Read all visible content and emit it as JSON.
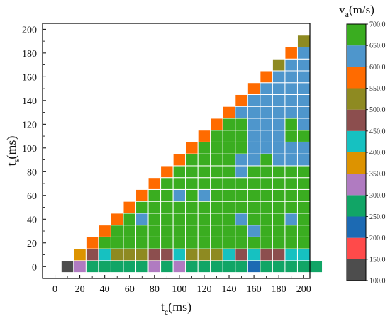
{
  "chart_data": {
    "type": "heatmap",
    "title": "",
    "xlabel_main": "t",
    "xlabel_sub": "c",
    "xlabel_unit": "(ms)",
    "ylabel_main": "t",
    "ylabel_sub": "s",
    "ylabel_unit": "(ms)",
    "xlim": [
      -10,
      205
    ],
    "ylim": [
      -10,
      205
    ],
    "x_ticks": [
      "0",
      "20",
      "40",
      "60",
      "80",
      "100",
      "120",
      "140",
      "160",
      "180",
      "200"
    ],
    "y_ticks": [
      "0",
      "20",
      "40",
      "60",
      "80",
      "100",
      "120",
      "140",
      "160",
      "180",
      "200"
    ],
    "x_tick_values": [
      0,
      20,
      40,
      60,
      80,
      100,
      120,
      140,
      160,
      180,
      200
    ],
    "y_tick_values": [
      0,
      20,
      40,
      60,
      80,
      100,
      120,
      140,
      160,
      180,
      200
    ],
    "cell_step": 10,
    "colorbar": {
      "title_main": "v",
      "title_sub": "a",
      "title_unit": "(m/s)",
      "tick_labels": [
        "100.0",
        "150.0",
        "200.0",
        "250.0",
        "300.0",
        "350.0",
        "400.0",
        "450.0",
        "500.0",
        "550.0",
        "600.0",
        "650.0",
        "700.0"
      ],
      "range": [
        100,
        700
      ],
      "bins": [
        {
          "range": [
            100,
            150
          ],
          "color": "#4d4d4d"
        },
        {
          "range": [
            150,
            200
          ],
          "color": "#ff4a4a"
        },
        {
          "range": [
            200,
            250
          ],
          "color": "#1c6ab3"
        },
        {
          "range": [
            250,
            300
          ],
          "color": "#11a566"
        },
        {
          "range": [
            300,
            350
          ],
          "color": "#b07bc1"
        },
        {
          "range": [
            350,
            400
          ],
          "color": "#dd9300"
        },
        {
          "range": [
            400,
            450
          ],
          "color": "#16c1c1"
        },
        {
          "range": [
            450,
            500
          ],
          "color": "#8c4e4e"
        },
        {
          "range": [
            500,
            550
          ],
          "color": "#8e8a21"
        },
        {
          "range": [
            550,
            600
          ],
          "color": "#ff6b00"
        },
        {
          "range": [
            600,
            650
          ],
          "color": "#4e96cc"
        },
        {
          "range": [
            650,
            700
          ],
          "color": "#3aad20"
        }
      ]
    },
    "rows": [
      {
        "ts": 0,
        "start_tc": 10,
        "values": [
          125,
          325,
          275,
          275,
          275,
          275,
          275,
          325,
          275,
          325,
          275,
          275,
          275,
          275,
          275,
          225,
          275,
          275,
          275,
          275,
          275
        ]
      },
      {
        "ts": 10,
        "start_tc": 20,
        "values": [
          375,
          475,
          425,
          525,
          525,
          525,
          475,
          475,
          425,
          525,
          525,
          525,
          425,
          475,
          425,
          475,
          475,
          425,
          425
        ]
      },
      {
        "ts": 20,
        "start_tc": 30,
        "values": [
          575,
          675,
          675,
          675,
          675,
          675,
          675,
          675,
          675,
          675,
          675,
          675,
          675,
          675,
          675,
          675,
          675,
          675
        ]
      },
      {
        "ts": 30,
        "start_tc": 40,
        "values": [
          575,
          675,
          675,
          675,
          675,
          675,
          675,
          675,
          675,
          675,
          675,
          675,
          625,
          675,
          675,
          675,
          675
        ]
      },
      {
        "ts": 40,
        "start_tc": 50,
        "values": [
          575,
          675,
          625,
          675,
          675,
          675,
          675,
          675,
          675,
          675,
          625,
          675,
          675,
          675,
          625,
          675
        ]
      },
      {
        "ts": 50,
        "start_tc": 60,
        "values": [
          575,
          675,
          675,
          675,
          675,
          675,
          675,
          675,
          675,
          675,
          675,
          675,
          675,
          675,
          675
        ]
      },
      {
        "ts": 60,
        "start_tc": 70,
        "values": [
          575,
          675,
          675,
          625,
          675,
          625,
          675,
          675,
          675,
          675,
          675,
          675,
          675,
          675
        ]
      },
      {
        "ts": 70,
        "start_tc": 80,
        "values": [
          575,
          675,
          675,
          675,
          675,
          675,
          675,
          675,
          675,
          675,
          675,
          675,
          675
        ]
      },
      {
        "ts": 80,
        "start_tc": 90,
        "values": [
          575,
          675,
          675,
          675,
          675,
          675,
          625,
          675,
          675,
          675,
          675,
          675
        ]
      },
      {
        "ts": 90,
        "start_tc": 100,
        "values": [
          575,
          675,
          675,
          675,
          675,
          625,
          625,
          675,
          625,
          625,
          625
        ]
      },
      {
        "ts": 100,
        "start_tc": 110,
        "values": [
          575,
          675,
          675,
          675,
          675,
          625,
          625,
          625,
          625,
          625
        ]
      },
      {
        "ts": 110,
        "start_tc": 120,
        "values": [
          575,
          675,
          675,
          675,
          625,
          625,
          625,
          675,
          675
        ]
      },
      {
        "ts": 120,
        "start_tc": 130,
        "values": [
          575,
          675,
          675,
          625,
          625,
          625,
          675,
          625
        ]
      },
      {
        "ts": 130,
        "start_tc": 140,
        "values": [
          575,
          625,
          625,
          625,
          625,
          625,
          625
        ]
      },
      {
        "ts": 140,
        "start_tc": 150,
        "values": [
          575,
          625,
          625,
          625,
          625,
          625
        ]
      },
      {
        "ts": 150,
        "start_tc": 160,
        "values": [
          575,
          625,
          625,
          625,
          625
        ]
      },
      {
        "ts": 160,
        "start_tc": 170,
        "values": [
          575,
          625,
          625,
          625
        ]
      },
      {
        "ts": 170,
        "start_tc": 180,
        "values": [
          525,
          625,
          625
        ]
      },
      {
        "ts": 180,
        "start_tc": 190,
        "values": [
          575,
          625
        ]
      },
      {
        "ts": 190,
        "start_tc": 200,
        "values": [
          525
        ]
      }
    ]
  }
}
